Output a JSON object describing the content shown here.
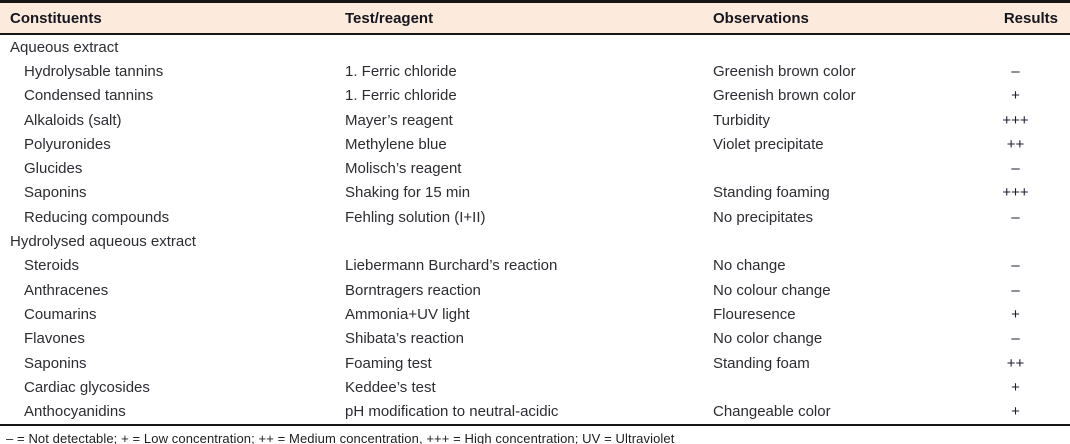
{
  "table": {
    "columns": [
      "Constituents",
      "Test/reagent",
      "Observations",
      "Results"
    ],
    "rows": [
      {
        "type": "section",
        "constituent": "Aqueous extract",
        "test": "",
        "observation": "",
        "result": ""
      },
      {
        "type": "item",
        "constituent": "Hydrolysable tannins",
        "test": "1. Ferric chloride",
        "observation": "Greenish brown color",
        "result": "–"
      },
      {
        "type": "item",
        "constituent": "Condensed tannins",
        "test": "1. Ferric chloride",
        "observation": "Greenish brown color",
        "result": "+"
      },
      {
        "type": "item",
        "constituent": "Alkaloids (salt)",
        "test": "Mayer’s reagent",
        "observation": "Turbidity",
        "result": "+++"
      },
      {
        "type": "item",
        "constituent": "Polyuronides",
        "test": "Methylene blue",
        "observation": "Violet precipitate",
        "result": "++"
      },
      {
        "type": "item",
        "constituent": "Glucides",
        "test": "Molisch’s reagent",
        "observation": "",
        "result": "–"
      },
      {
        "type": "item",
        "constituent": "Saponins",
        "test": "Shaking for 15 min",
        "observation": "Standing foaming",
        "result": "+++"
      },
      {
        "type": "item",
        "constituent": "Reducing compounds",
        "test": "Fehling solution (I+II)",
        "observation": "No precipitates",
        "result": "–"
      },
      {
        "type": "section",
        "constituent": "Hydrolysed aqueous extract",
        "test": "",
        "observation": "",
        "result": ""
      },
      {
        "type": "item",
        "constituent": "Steroids",
        "test": "Liebermann Burchard’s reaction",
        "observation": "No change",
        "result": "–"
      },
      {
        "type": "item",
        "constituent": "Anthracenes",
        "test": "Borntragers reaction",
        "observation": "No colour change",
        "result": "–"
      },
      {
        "type": "item",
        "constituent": "Coumarins",
        "test": "Ammonia+UV light",
        "observation": "Flouresence",
        "result": "+"
      },
      {
        "type": "item",
        "constituent": "Flavones",
        "test": "Shibata’s reaction",
        "observation": "No color change",
        "result": "–"
      },
      {
        "type": "item",
        "constituent": "Saponins",
        "test": "Foaming test",
        "observation": "Standing foam",
        "result": "++"
      },
      {
        "type": "item",
        "constituent": "Cardiac glycosides",
        "test": "Keddee’s test",
        "observation": "",
        "result": "+"
      },
      {
        "type": "item",
        "constituent": "Anthocyanidins",
        "test": "pH modification to neutral-acidic",
        "observation": "Changeable color",
        "result": "+"
      }
    ],
    "footnote": "– = Not detectable; + = Low concentration; ++ = Medium concentration, +++ = High concentration; UV = Ultraviolet",
    "colors": {
      "header_bg": "#fcebdc",
      "border": "#161616",
      "body_text": "#2c2c32"
    }
  }
}
